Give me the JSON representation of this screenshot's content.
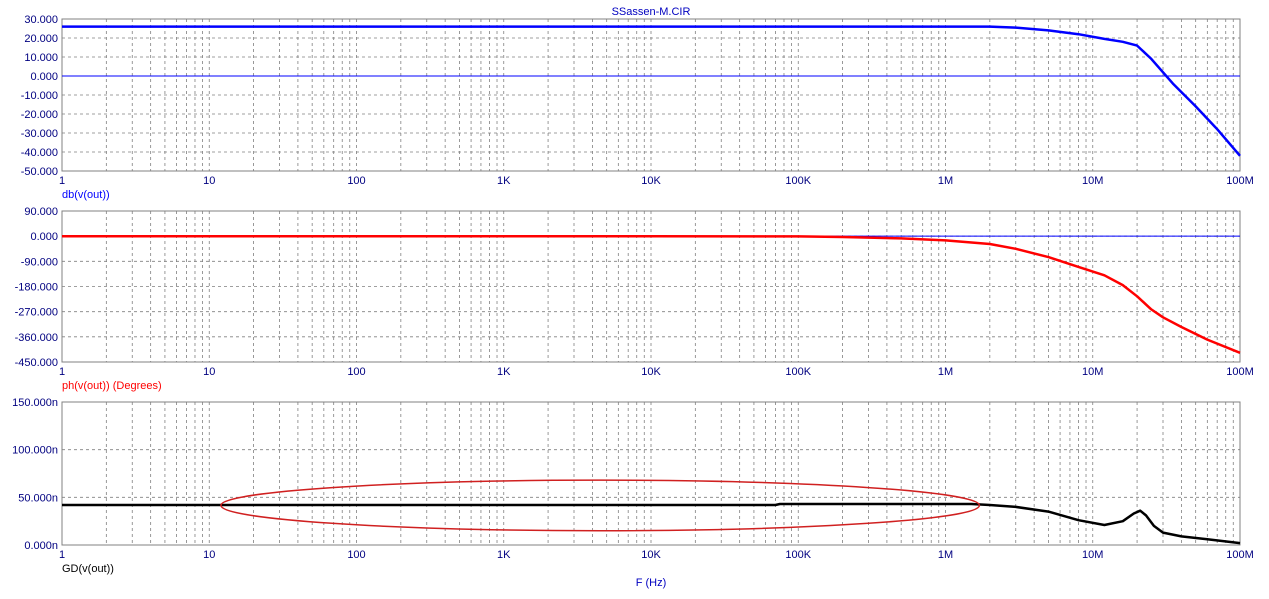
{
  "title": "SSassen-M.CIR",
  "x_axis_label": "F (Hz)",
  "x_tick_labels": [
    "1",
    "10",
    "100",
    "1K",
    "10K",
    "100K",
    "1M",
    "10M",
    "100M"
  ],
  "colors": {
    "gain": "#0000ff",
    "phase": "#ff0000",
    "group_delay": "#000000",
    "axis_text": "#000080",
    "grid": "#808080",
    "highlight_ellipse": "#d02020"
  },
  "chart_data": [
    {
      "type": "line",
      "xscale": "log",
      "xlim": [
        1,
        100000000
      ],
      "ylim": [
        -50,
        30
      ],
      "y_tick_labels": [
        "30.000",
        "20.000",
        "10.000",
        "0.000",
        "-10.000",
        "-20.000",
        "-30.000",
        "-40.000",
        "-50.000"
      ],
      "ylabel": "db(v(out))",
      "grid": true,
      "series": [
        {
          "x": [
            1,
            10,
            100,
            1000,
            10000,
            100000,
            1000000,
            2000000,
            3000000,
            5000000,
            8000000,
            12000000,
            16000000,
            20000000,
            25000000,
            35000000,
            50000000,
            70000000,
            100000000
          ],
          "y": [
            26,
            26,
            26,
            26,
            26,
            26,
            26,
            26,
            25.5,
            24,
            22,
            19.5,
            18,
            16,
            9,
            -4,
            -16,
            -28,
            -42
          ]
        }
      ]
    },
    {
      "type": "line",
      "xscale": "log",
      "xlim": [
        1,
        100000000
      ],
      "ylim": [
        -450,
        90
      ],
      "y_tick_labels": [
        "90.000",
        "0.000",
        "-90.000",
        "-180.000",
        "-270.000",
        "-360.000",
        "-450.000"
      ],
      "ylabel": "ph(v(out)) (Degrees)",
      "grid": true,
      "series": [
        {
          "x": [
            1,
            10,
            100,
            1000,
            10000,
            100000,
            200000,
            500000,
            1000000,
            2000000,
            3000000,
            5000000,
            8000000,
            12000000,
            16000000,
            20000000,
            25000000,
            30000000,
            40000000,
            60000000,
            100000000
          ],
          "y": [
            0,
            0,
            0,
            0,
            0,
            -1,
            -3,
            -8,
            -15,
            -28,
            -45,
            -75,
            -110,
            -140,
            -175,
            -215,
            -262,
            -290,
            -325,
            -370,
            -417
          ]
        }
      ]
    },
    {
      "type": "line",
      "xscale": "log",
      "xlim": [
        1,
        100000000
      ],
      "ylim": [
        0,
        150
      ],
      "y_tick_labels": [
        "150.000n",
        "100.000n",
        "50.000n",
        "0.000n"
      ],
      "ylabel": "GD(v(out))",
      "grid": true,
      "series": [
        {
          "x": [
            1,
            10,
            100,
            1000,
            10000,
            70000,
            75000,
            100000,
            1000000,
            1500000,
            2000000,
            3000000,
            5000000,
            8000000,
            12000000,
            16000000,
            19000000,
            21000000,
            23000000,
            26000000,
            30000000,
            40000000,
            60000000,
            100000000
          ],
          "y": [
            42,
            42,
            42,
            42,
            42,
            42,
            43,
            43,
            43,
            43,
            42,
            40,
            35,
            26,
            21,
            25,
            33,
            36,
            31,
            20,
            13,
            9,
            6,
            2
          ]
        }
      ],
      "annotation": {
        "shape": "ellipse",
        "x_range": [
          12,
          1700000
        ],
        "y_range": [
          15,
          68
        ]
      }
    }
  ]
}
